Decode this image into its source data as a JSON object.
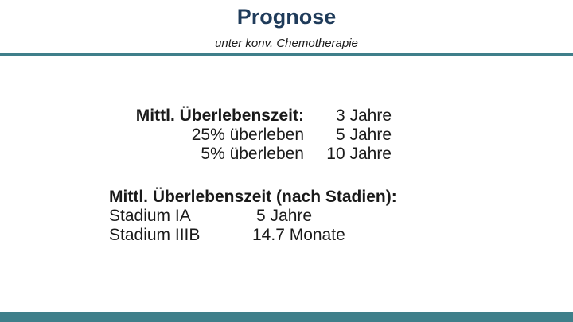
{
  "slide": {
    "title": "Prognose",
    "subtitle": "unter konv. Chemotherapie"
  },
  "survival": {
    "rows": [
      {
        "label": "Mittl. Überlebenszeit:",
        "value": "3 Jahre"
      },
      {
        "label": "25% überleben",
        "value": "5 Jahre"
      },
      {
        "label": "5% überleben",
        "value": "10 Jahre"
      }
    ]
  },
  "stages": {
    "heading": "Mittl. Überlebenszeit (nach Stadien):",
    "rows": [
      {
        "label": "Stadium IA",
        "value": "5 Jahre"
      },
      {
        "label": "Stadium IIIB",
        "value": "14.7 Monate"
      }
    ]
  },
  "colors": {
    "accent": "#3f7f8a",
    "title": "#1f3b5a"
  }
}
